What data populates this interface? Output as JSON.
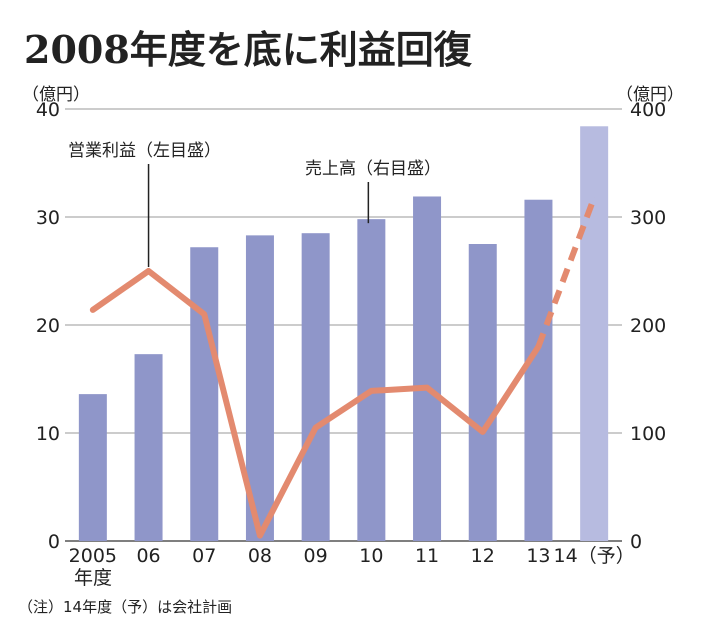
{
  "chart_data": {
    "type": "bar",
    "title": "2008年度を底に利益回復",
    "left_axis_unit": "（億円）",
    "right_axis_unit": "（億円）",
    "categories": [
      "2005",
      "06",
      "07",
      "08",
      "09",
      "10",
      "11",
      "12",
      "13",
      "14（予）"
    ],
    "first_category_sub_label": "年度",
    "left_ylim": [
      0,
      40
    ],
    "left_ticks": [
      0,
      10,
      20,
      30,
      40
    ],
    "right_ylim": [
      0,
      400
    ],
    "right_ticks": [
      0,
      100,
      200,
      300,
      400
    ],
    "grid": true,
    "series": [
      {
        "name": "売上高（右目盛）",
        "type": "bar",
        "axis": "right",
        "values": [
          136,
          173,
          272,
          283,
          285,
          298,
          319,
          275,
          316,
          384
        ],
        "color": "#8f96c9",
        "forecast_color": "#b7bbe0"
      },
      {
        "name": "営業利益（左目盛）",
        "type": "line",
        "axis": "left",
        "values": [
          21.4,
          25,
          21,
          0.5,
          10.5,
          13.9,
          14.2,
          10.1,
          18,
          31.8
        ],
        "color": "#e38a6f"
      }
    ],
    "forecast_index": 9,
    "note": "（注）14年度（予）は会社計画"
  }
}
